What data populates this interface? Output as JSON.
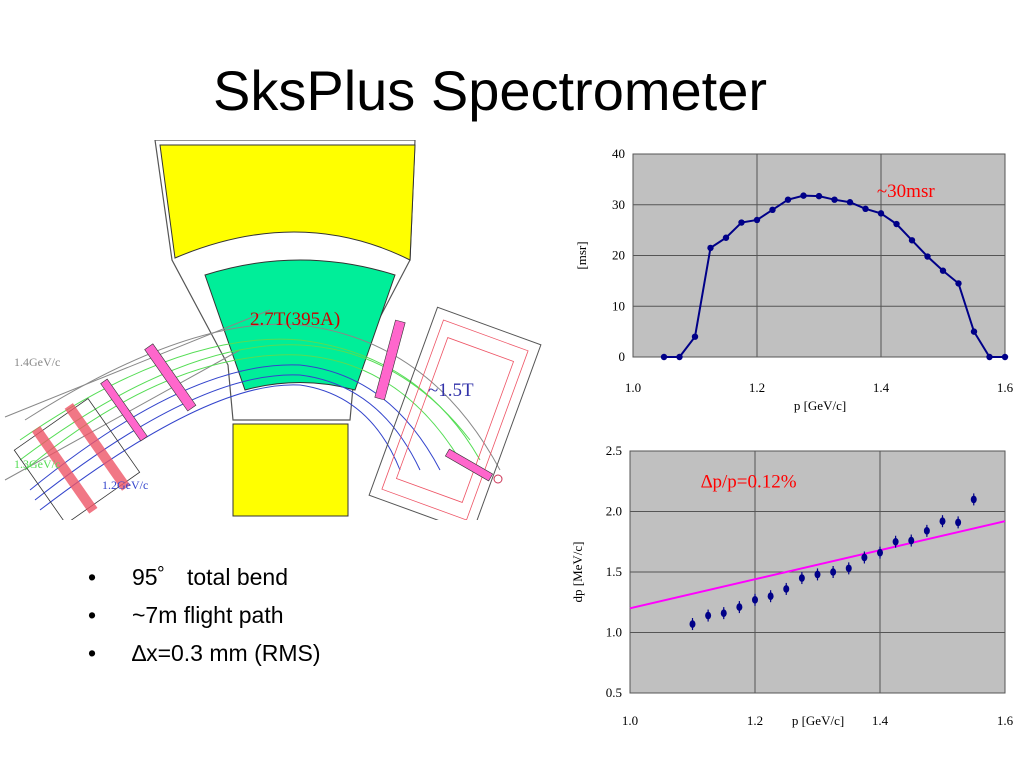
{
  "title": "SksPlus Spectrometer",
  "diagram": {
    "field_main": "2.7T(395A)",
    "field_aux": "~1.5T",
    "track_labels": [
      "1.4GeV/c",
      "1.3GeV/c",
      "1.2GeV/c"
    ],
    "colors": {
      "yoke": "#ffff00",
      "gap": "#00ee99",
      "track_green": "#55dd55",
      "track_blue": "#3344cc",
      "chamber": "#ff66cc",
      "counter": "#ee5566"
    }
  },
  "bullets": [
    {
      "marker": "•",
      "text": "95゜ total bend"
    },
    {
      "marker": "•",
      "text": "~7m flight path"
    },
    {
      "marker": "•",
      "text": "∆x=0.3 mm (RMS)"
    }
  ],
  "chart_data": [
    {
      "type": "line",
      "ylabel": "[msr]",
      "xlabel": "p [GeV/c]",
      "xlim": [
        1.0,
        1.6
      ],
      "ylim": [
        0,
        40
      ],
      "xticks": [
        "1.0",
        "1.2",
        "1.4",
        "1.6"
      ],
      "yticks": [
        "0",
        "10",
        "20",
        "30",
        "40"
      ],
      "annotation": "~30msr",
      "grid": true,
      "colors": {
        "line": "#000088",
        "plot_bg": "#c0c0c0",
        "annotation": "#ff0000"
      },
      "x": [
        1.05,
        1.075,
        1.1,
        1.125,
        1.15,
        1.175,
        1.2,
        1.225,
        1.25,
        1.275,
        1.3,
        1.325,
        1.35,
        1.375,
        1.4,
        1.425,
        1.45,
        1.475,
        1.5,
        1.525,
        1.55,
        1.575,
        1.6
      ],
      "y": [
        0,
        0,
        4,
        21.5,
        23.5,
        26.5,
        27,
        29,
        31,
        31.8,
        31.7,
        31,
        30.5,
        29.2,
        28.3,
        26.2,
        23,
        19.8,
        17,
        14.5,
        5,
        0,
        0
      ]
    },
    {
      "type": "scatter",
      "ylabel": "dp [MeV/c]",
      "xlabel": "p [GeV/c]",
      "xlim": [
        1.0,
        1.6
      ],
      "ylim": [
        0.5,
        2.5
      ],
      "xticks": [
        "1.0",
        "1.2",
        "1.4",
        "1.6"
      ],
      "yticks": [
        "0.5",
        "1.0",
        "1.5",
        "2.0",
        "2.5"
      ],
      "annotation": "∆p/p=0.12%",
      "grid": true,
      "colors": {
        "points": "#000088",
        "fit": "#ff00ff",
        "plot_bg": "#c0c0c0",
        "annotation": "#ff0000"
      },
      "x": [
        1.1,
        1.125,
        1.15,
        1.175,
        1.2,
        1.225,
        1.25,
        1.275,
        1.3,
        1.325,
        1.35,
        1.375,
        1.4,
        1.425,
        1.45,
        1.475,
        1.5,
        1.525,
        1.55
      ],
      "y": [
        1.07,
        1.14,
        1.16,
        1.21,
        1.27,
        1.3,
        1.36,
        1.45,
        1.48,
        1.5,
        1.53,
        1.62,
        1.66,
        1.75,
        1.76,
        1.84,
        1.92,
        1.91,
        2.1
      ],
      "fit": [
        [
          1.0,
          1.2
        ],
        [
          1.6,
          1.92
        ]
      ]
    }
  ]
}
